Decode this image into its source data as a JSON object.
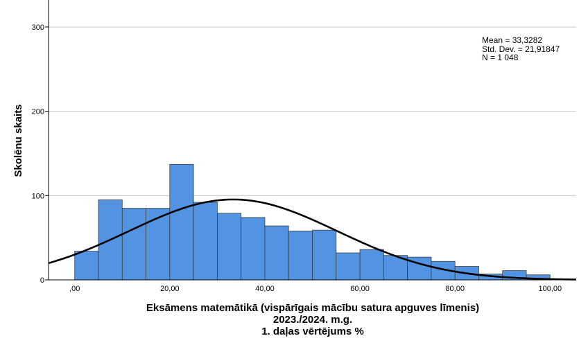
{
  "chart_data": {
    "type": "bar",
    "subtype": "histogram",
    "ylabel": "Skolēnu skaits",
    "xlabel_lines": [
      "Eksāmens matemātikā (vispārīgais mācību satura apguves līmenis)",
      "2023./2024. m.g.",
      "1. daļas vērtējums %"
    ],
    "stats": {
      "mean": "Mean = 33,3282",
      "std": "Std. Dev. = 21,91847",
      "n": "N = 1 048"
    },
    "mean_value": 33.3282,
    "std_value": 21.91847,
    "n_value": 1048,
    "bin_width": 5,
    "bins": [
      {
        "start": 0,
        "end": 5,
        "count": 34
      },
      {
        "start": 5,
        "end": 10,
        "count": 95
      },
      {
        "start": 10,
        "end": 15,
        "count": 85
      },
      {
        "start": 15,
        "end": 20,
        "count": 85
      },
      {
        "start": 20,
        "end": 25,
        "count": 137
      },
      {
        "start": 25,
        "end": 30,
        "count": 92
      },
      {
        "start": 30,
        "end": 35,
        "count": 79
      },
      {
        "start": 35,
        "end": 40,
        "count": 74
      },
      {
        "start": 40,
        "end": 45,
        "count": 64
      },
      {
        "start": 45,
        "end": 50,
        "count": 58
      },
      {
        "start": 50,
        "end": 55,
        "count": 59
      },
      {
        "start": 55,
        "end": 60,
        "count": 32
      },
      {
        "start": 60,
        "end": 65,
        "count": 36
      },
      {
        "start": 65,
        "end": 70,
        "count": 29
      },
      {
        "start": 70,
        "end": 75,
        "count": 27
      },
      {
        "start": 75,
        "end": 80,
        "count": 22
      },
      {
        "start": 80,
        "end": 85,
        "count": 16
      },
      {
        "start": 85,
        "end": 90,
        "count": 7
      },
      {
        "start": 90,
        "end": 95,
        "count": 11
      },
      {
        "start": 95,
        "end": 100,
        "count": 6
      }
    ],
    "x_ticks": [
      {
        "value": 0,
        "label": ",00"
      },
      {
        "value": 20,
        "label": "20,00"
      },
      {
        "value": 40,
        "label": "40,00"
      },
      {
        "value": 60,
        "label": "60,00"
      },
      {
        "value": 80,
        "label": "80,00"
      },
      {
        "value": 100,
        "label": "100,00"
      }
    ],
    "y_ticks": [
      {
        "value": 0,
        "label": "0"
      },
      {
        "value": 100,
        "label": "100"
      },
      {
        "value": 200,
        "label": "200"
      },
      {
        "value": 300,
        "label": "300"
      }
    ],
    "xlim": [
      -5.5,
      105.5
    ],
    "ylim": [
      0,
      332
    ],
    "grid": "horizontal",
    "normal_curve": true,
    "colors": {
      "bar_fill": "#5294e2",
      "bar_stroke": "#3a3a3a",
      "grid": "#c8c8c8",
      "curve": "#000000",
      "axis": "#000000"
    }
  }
}
